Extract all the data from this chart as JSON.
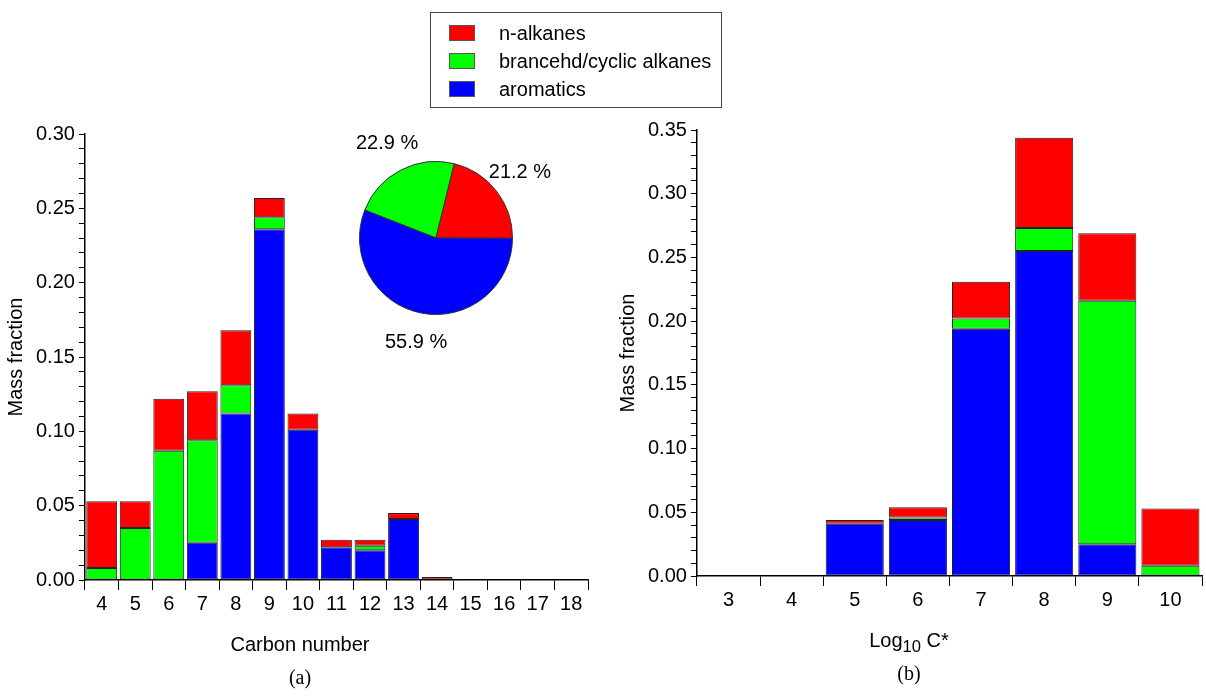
{
  "chart_data": [
    {
      "type": "bar",
      "stacked": true,
      "xlabel": "Carbon number",
      "ylabel": "Mass fraction",
      "annotations": [
        "(a)"
      ],
      "legend": "top",
      "grid": false,
      "categories": [
        "4",
        "5",
        "6",
        "7",
        "8",
        "9",
        "10",
        "11",
        "12",
        "13",
        "14",
        "15",
        "16",
        "17",
        "18"
      ],
      "ylim": [
        0,
        0.3
      ],
      "yticks": [
        {
          "value": 0,
          "label": "0.00"
        },
        {
          "value": 0.01,
          "label": null
        },
        {
          "value": 0.02,
          "label": null
        },
        {
          "value": 0.03,
          "label": null
        },
        {
          "value": 0.04,
          "label": null
        },
        {
          "value": 0.05,
          "label": "0.05"
        },
        {
          "value": 0.06,
          "label": null
        },
        {
          "value": 0.07,
          "label": null
        },
        {
          "value": 0.08,
          "label": null
        },
        {
          "value": 0.09,
          "label": null
        },
        {
          "value": 0.1,
          "label": "0.10"
        },
        {
          "value": 0.11,
          "label": null
        },
        {
          "value": 0.12,
          "label": null
        },
        {
          "value": 0.13,
          "label": null
        },
        {
          "value": 0.14,
          "label": null
        },
        {
          "value": 0.15,
          "label": "0.15"
        },
        {
          "value": 0.16,
          "label": null
        },
        {
          "value": 0.17,
          "label": null
        },
        {
          "value": 0.18,
          "label": null
        },
        {
          "value": 0.19,
          "label": null
        },
        {
          "value": 0.2,
          "label": "0.20"
        },
        {
          "value": 0.21,
          "label": null
        },
        {
          "value": 0.22,
          "label": null
        },
        {
          "value": 0.23,
          "label": null
        },
        {
          "value": 0.24,
          "label": null
        },
        {
          "value": 0.25,
          "label": "0.25"
        },
        {
          "value": 0.26,
          "label": null
        },
        {
          "value": 0.27,
          "label": null
        },
        {
          "value": 0.28,
          "label": null
        },
        {
          "value": 0.29,
          "label": null
        },
        {
          "value": 0.3,
          "label": "0.30"
        }
      ],
      "series": [
        {
          "name": "aromatics",
          "color": "#0000ff",
          "values": [
            0,
            0,
            0,
            0.025,
            0.112,
            0.236,
            0.101,
            0.022,
            0.02,
            0.041,
            0,
            0,
            0,
            0,
            0
          ]
        },
        {
          "name": "brancehd/cyclic alkanes",
          "color": "#00ff00",
          "values": [
            0.008,
            0.035,
            0.087,
            0.069,
            0.019,
            0.008,
            0,
            0,
            0.003,
            0,
            0,
            0,
            0,
            0,
            0
          ]
        },
        {
          "name": "n-alkanes",
          "color": "#ff0000",
          "values": [
            0.045,
            0.018,
            0.035,
            0.033,
            0.037,
            0.013,
            0.011,
            0.005,
            0.004,
            0.004,
            0.002,
            0,
            0,
            0,
            0
          ]
        }
      ]
    },
    {
      "type": "pie",
      "categories": [
        null,
        null,
        null
      ],
      "values": [
        22.9,
        21.2,
        55.9
      ],
      "colors": [
        "#00ff00",
        "#ff0000",
        "#0000ff"
      ],
      "value_labels": [
        "22.9 %",
        "21.2 %",
        "55.9 %"
      ]
    },
    {
      "type": "bar",
      "stacked": true,
      "xlabel": "Log$_{10}$ C*",
      "ylabel": "Mass fraction",
      "annotations": [
        "(b)"
      ],
      "grid": false,
      "categories": [
        "3",
        "4",
        "5",
        "6",
        "7",
        "8",
        "9",
        "10"
      ],
      "ylim": [
        0,
        0.35
      ],
      "yticks": [
        {
          "value": 0,
          "label": "0.00"
        },
        {
          "value": 0.01,
          "label": null
        },
        {
          "value": 0.02,
          "label": null
        },
        {
          "value": 0.03,
          "label": null
        },
        {
          "value": 0.04,
          "label": null
        },
        {
          "value": 0.05,
          "label": "0.05"
        },
        {
          "value": 0.06,
          "label": null
        },
        {
          "value": 0.07,
          "label": null
        },
        {
          "value": 0.08,
          "label": null
        },
        {
          "value": 0.09,
          "label": null
        },
        {
          "value": 0.1,
          "label": "0.10"
        },
        {
          "value": 0.11,
          "label": null
        },
        {
          "value": 0.12,
          "label": null
        },
        {
          "value": 0.13,
          "label": null
        },
        {
          "value": 0.14,
          "label": null
        },
        {
          "value": 0.15,
          "label": "0.15"
        },
        {
          "value": 0.16,
          "label": null
        },
        {
          "value": 0.17,
          "label": null
        },
        {
          "value": 0.18,
          "label": null
        },
        {
          "value": 0.19,
          "label": null
        },
        {
          "value": 0.2,
          "label": "0.20"
        },
        {
          "value": 0.21,
          "label": null
        },
        {
          "value": 0.22,
          "label": null
        },
        {
          "value": 0.23,
          "label": null
        },
        {
          "value": 0.24,
          "label": null
        },
        {
          "value": 0.25,
          "label": "0.25"
        },
        {
          "value": 0.26,
          "label": null
        },
        {
          "value": 0.27,
          "label": null
        },
        {
          "value": 0.28,
          "label": null
        },
        {
          "value": 0.29,
          "label": null
        },
        {
          "value": 0.3,
          "label": "0.30"
        },
        {
          "value": 0.31,
          "label": null
        },
        {
          "value": 0.32,
          "label": null
        },
        {
          "value": 0.33,
          "label": null
        },
        {
          "value": 0.34,
          "label": null
        },
        {
          "value": 0.35,
          "label": "0.35"
        }
      ],
      "series": [
        {
          "color": "#0000ff",
          "values": [
            0,
            0,
            0.041,
            0.044,
            0.194,
            0.255,
            0.025,
            0
          ]
        },
        {
          "color": "#00ff00",
          "values": [
            0,
            0,
            0,
            0.002,
            0.008,
            0.018,
            0.191,
            0.008
          ]
        },
        {
          "color": "#ff0000",
          "values": [
            0,
            0,
            0.003,
            0.008,
            0.029,
            0.071,
            0.053,
            0.045
          ]
        }
      ]
    }
  ]
}
